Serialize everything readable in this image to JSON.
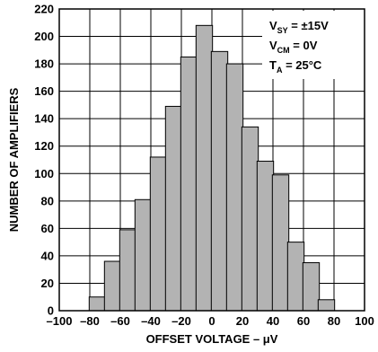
{
  "chart_data": {
    "type": "bar",
    "xlabel": "OFFSET VOLTAGE – μV",
    "ylabel": "NUMBER OF AMPLIFIERS",
    "xlim": [
      -100,
      100
    ],
    "ylim": [
      0,
      220
    ],
    "x_ticks": [
      -100,
      -80,
      -60,
      -40,
      -20,
      0,
      20,
      40,
      60,
      80,
      100
    ],
    "x_tick_labels": [
      "–100",
      "–80",
      "–60",
      "–40",
      "–20",
      "0",
      "20",
      "40",
      "60",
      "80",
      "100"
    ],
    "y_ticks": [
      0,
      20,
      40,
      60,
      80,
      100,
      120,
      140,
      160,
      180,
      200,
      220
    ],
    "y_tick_labels": [
      "0",
      "20",
      "40",
      "60",
      "80",
      "100",
      "120",
      "140",
      "160",
      "180",
      "200",
      "220"
    ],
    "grid": true,
    "bar_color": "#b3b3b3",
    "bins": [
      -75,
      -65,
      -55,
      -45,
      -35,
      -25,
      -15,
      -5,
      5,
      15,
      25,
      35,
      45,
      55,
      65,
      75
    ],
    "values": [
      10,
      36,
      59,
      81,
      112,
      149,
      185,
      208,
      189,
      180,
      134,
      109,
      99,
      50,
      35,
      8
    ],
    "conditions": [
      {
        "main": "V",
        "sub": "SY",
        "rest": " = ±15V"
      },
      {
        "main": "V",
        "sub": "CM",
        "rest": " = 0V"
      },
      {
        "main": "T",
        "sub": "A",
        "rest": " = 25°C"
      }
    ]
  }
}
